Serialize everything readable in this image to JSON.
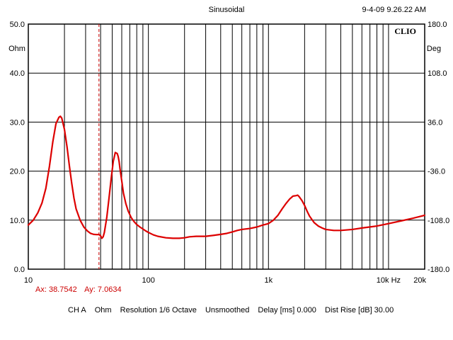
{
  "header": {
    "title": "Sinusoidal",
    "timestamp": "9-4-09 9.26.22 AM"
  },
  "chart_data": {
    "type": "line",
    "brand": "CLIO",
    "x_scale": "log",
    "xlim": [
      10,
      20000
    ],
    "x_ticks": [
      {
        "value": 10,
        "label": "10"
      },
      {
        "value": 100,
        "label": "100"
      },
      {
        "value": 1000,
        "label": "1k"
      },
      {
        "value": 10000,
        "label": "10k Hz"
      },
      {
        "value": 20000,
        "label": "20k"
      }
    ],
    "ylabel_left": "Ohm",
    "ylim": [
      0,
      50
    ],
    "y_ticks": [
      "0.0",
      "10.0",
      "20.0",
      "30.0",
      "40.0",
      "50.0"
    ],
    "ylabel_right": "Deg",
    "ylim_right": [
      -180,
      180
    ],
    "y_ticks_right": [
      "-180.0",
      "-108.0",
      "-36.0",
      "36.0",
      "108.0",
      "180.0"
    ],
    "grid": true,
    "line_color": "#dd0000",
    "series": [
      {
        "x": [
          10,
          11,
          12,
          13,
          14,
          15,
          16,
          17,
          18,
          18.5,
          19,
          20,
          21,
          22,
          23,
          24,
          25,
          27,
          29,
          31,
          33,
          35,
          37,
          38.75,
          40,
          41,
          42,
          43,
          45,
          47,
          49,
          51,
          53,
          55,
          56,
          57,
          58,
          60,
          62,
          65,
          68,
          72,
          76,
          80,
          85,
          90,
          95,
          100,
          110,
          120,
          140,
          160,
          180,
          200,
          220,
          250,
          300,
          350,
          400,
          450,
          500,
          550,
          600,
          700,
          800,
          900,
          1000,
          1100,
          1200,
          1300,
          1400,
          1500,
          1600,
          1700,
          1750,
          1800,
          1900,
          2000,
          2100,
          2200,
          2400,
          2600,
          2800,
          3000,
          3500,
          4000,
          5000,
          6000,
          8000,
          10000,
          13000,
          16000,
          20000
        ],
        "y": [
          9.0,
          10.0,
          11.5,
          13.5,
          16.5,
          21.0,
          26.0,
          29.7,
          31.0,
          31.2,
          30.8,
          28.5,
          25.0,
          21.0,
          17.5,
          14.5,
          12.3,
          10.0,
          8.6,
          7.8,
          7.3,
          7.1,
          7.05,
          7.06,
          6.8,
          6.3,
          6.6,
          7.5,
          10.5,
          14.5,
          18.5,
          22.0,
          23.8,
          23.6,
          23.0,
          22.0,
          20.5,
          18.0,
          15.5,
          13.3,
          11.8,
          10.5,
          9.7,
          9.1,
          8.6,
          8.2,
          7.8,
          7.5,
          7.0,
          6.7,
          6.4,
          6.3,
          6.3,
          6.4,
          6.6,
          6.7,
          6.7,
          6.9,
          7.1,
          7.3,
          7.6,
          7.9,
          8.1,
          8.3,
          8.6,
          9.0,
          9.3,
          10.0,
          11.0,
          12.3,
          13.4,
          14.3,
          14.9,
          15.0,
          15.1,
          14.8,
          14.0,
          13.0,
          11.8,
          10.8,
          9.5,
          8.8,
          8.4,
          8.1,
          7.9,
          7.9,
          8.1,
          8.4,
          8.8,
          9.3,
          9.9,
          10.4,
          11.0
        ]
      }
    ],
    "markers": [
      {
        "x": 38.7542,
        "y": 7.0634,
        "style": "dashed",
        "color": "#cc0000"
      }
    ]
  },
  "cursor_readout": {
    "ax": "Ax: 38.7542",
    "ay": "Ay: 7.0634"
  },
  "footer": {
    "channel": "CH A",
    "unit": "Ohm",
    "resolution": "Resolution 1/6 Octave",
    "smoothing": "Unsmoothed",
    "delay": "Delay [ms] 0.000",
    "dist_rise": "Dist Rise [dB] 30.00"
  }
}
